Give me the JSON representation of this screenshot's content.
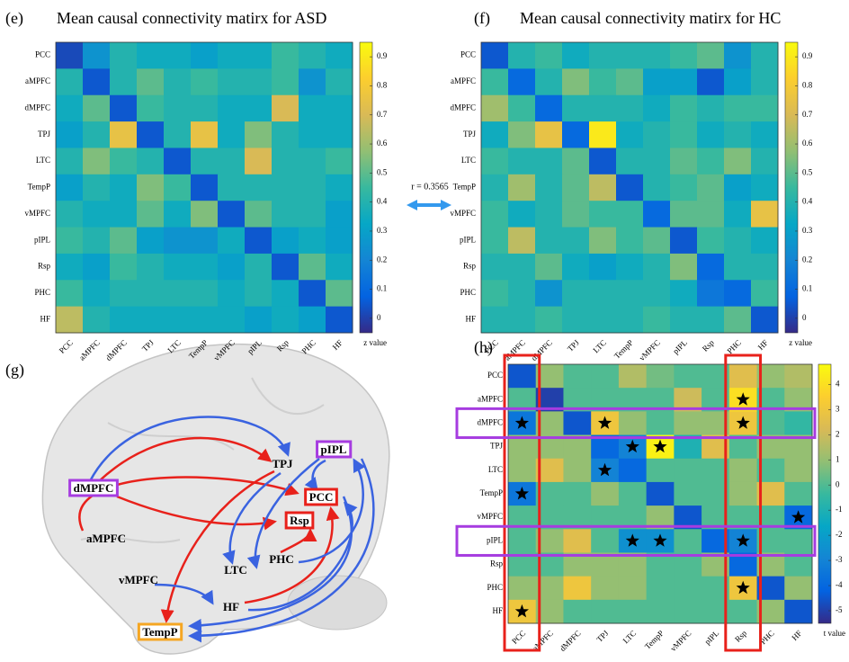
{
  "chart_data": [
    {
      "type": "heatmap",
      "panel": "(e)",
      "title": "Mean causal connectivity matirx for ASD",
      "colormap": "parula",
      "x_categories": [
        "PCC",
        "aMPFC",
        "dMPFC",
        "TPJ",
        "LTC",
        "TempP",
        "vMPFC",
        "pIPL",
        "Rsp",
        "PHC",
        "HF"
      ],
      "y_categories": [
        "PCC",
        "aMPFC",
        "dMPFC",
        "TPJ",
        "LTC",
        "TempP",
        "vMPFC",
        "pIPL",
        "Rsp",
        "PHC",
        "HF"
      ],
      "values": [
        [
          0.02,
          0.25,
          0.4,
          0.35,
          0.35,
          0.3,
          0.35,
          0.35,
          0.45,
          0.4,
          0.35
        ],
        [
          0.4,
          0.05,
          0.4,
          0.5,
          0.4,
          0.45,
          0.4,
          0.4,
          0.45,
          0.25,
          0.4
        ],
        [
          0.35,
          0.5,
          0.05,
          0.45,
          0.4,
          0.4,
          0.35,
          0.35,
          0.7,
          0.35,
          0.35
        ],
        [
          0.3,
          0.4,
          0.75,
          0.05,
          0.4,
          0.75,
          0.35,
          0.55,
          0.4,
          0.35,
          0.35
        ],
        [
          0.4,
          0.55,
          0.45,
          0.4,
          0.05,
          0.4,
          0.4,
          0.7,
          0.4,
          0.4,
          0.45
        ],
        [
          0.3,
          0.4,
          0.35,
          0.55,
          0.45,
          0.05,
          0.4,
          0.4,
          0.4,
          0.4,
          0.35
        ],
        [
          0.4,
          0.35,
          0.35,
          0.5,
          0.35,
          0.55,
          0.05,
          0.5,
          0.4,
          0.4,
          0.3
        ],
        [
          0.45,
          0.4,
          0.5,
          0.3,
          0.25,
          0.25,
          0.35,
          0.05,
          0.3,
          0.35,
          0.3
        ],
        [
          0.35,
          0.3,
          0.45,
          0.4,
          0.35,
          0.35,
          0.3,
          0.4,
          0.05,
          0.5,
          0.35
        ],
        [
          0.45,
          0.35,
          0.4,
          0.4,
          0.4,
          0.4,
          0.35,
          0.4,
          0.35,
          0.05,
          0.5
        ],
        [
          0.65,
          0.4,
          0.35,
          0.35,
          0.35,
          0.35,
          0.35,
          0.3,
          0.35,
          0.3,
          0.05
        ]
      ],
      "zlim": [
        -0.05,
        0.95
      ],
      "zticks": [
        0,
        0.1,
        0.2,
        0.3,
        0.4,
        0.5,
        0.6,
        0.7,
        0.8,
        0.9
      ],
      "colorbar_label": "z value"
    },
    {
      "type": "heatmap",
      "panel": "(f)",
      "title": "Mean causal connectivity matirx for HC",
      "colormap": "parula",
      "x_categories": [
        "PCC",
        "aMPFC",
        "dMPFC",
        "TPJ",
        "LTC",
        "TempP",
        "vMPFC",
        "pIPL",
        "Rsp",
        "PHC",
        "HF"
      ],
      "y_categories": [
        "PCC",
        "aMPFC",
        "dMPFC",
        "TPJ",
        "LTC",
        "TempP",
        "vMPFC",
        "pIPL",
        "Rsp",
        "PHC",
        "HF"
      ],
      "values": [
        [
          0.05,
          0.4,
          0.45,
          0.35,
          0.4,
          0.4,
          0.4,
          0.45,
          0.5,
          0.25,
          0.4
        ],
        [
          0.45,
          0.1,
          0.4,
          0.55,
          0.45,
          0.5,
          0.3,
          0.3,
          0.05,
          0.3,
          0.4
        ],
        [
          0.6,
          0.45,
          0.1,
          0.4,
          0.4,
          0.4,
          0.35,
          0.45,
          0.4,
          0.45,
          0.45
        ],
        [
          0.35,
          0.55,
          0.75,
          0.1,
          0.9,
          0.35,
          0.4,
          0.45,
          0.35,
          0.4,
          0.35
        ],
        [
          0.45,
          0.4,
          0.4,
          0.5,
          0.05,
          0.4,
          0.4,
          0.5,
          0.45,
          0.55,
          0.4
        ],
        [
          0.4,
          0.6,
          0.4,
          0.5,
          0.65,
          0.05,
          0.4,
          0.45,
          0.5,
          0.3,
          0.35
        ],
        [
          0.45,
          0.35,
          0.4,
          0.5,
          0.45,
          0.45,
          0.1,
          0.5,
          0.5,
          0.35,
          0.75
        ],
        [
          0.45,
          0.65,
          0.4,
          0.4,
          0.55,
          0.45,
          0.5,
          0.05,
          0.45,
          0.4,
          0.35
        ],
        [
          0.4,
          0.4,
          0.5,
          0.35,
          0.3,
          0.35,
          0.4,
          0.55,
          0.1,
          0.4,
          0.4
        ],
        [
          0.45,
          0.4,
          0.25,
          0.4,
          0.4,
          0.4,
          0.4,
          0.35,
          0.15,
          0.1,
          0.45
        ],
        [
          0.4,
          0.4,
          0.45,
          0.4,
          0.4,
          0.4,
          0.45,
          0.4,
          0.4,
          0.5,
          0.05
        ]
      ],
      "zlim": [
        -0.05,
        0.95
      ],
      "zticks": [
        0,
        0.1,
        0.2,
        0.3,
        0.4,
        0.5,
        0.6,
        0.7,
        0.8,
        0.9
      ],
      "colorbar_label": "z value"
    },
    {
      "type": "heatmap",
      "panel": "(h)",
      "colormap": "parula",
      "x_categories": [
        "PCC",
        "aMPFC",
        "dMPFC",
        "TPJ",
        "LTC",
        "TempP",
        "vMPFC",
        "pIPL",
        "Rsp",
        "PHC",
        "HF"
      ],
      "y_categories": [
        "PCC",
        "aMPFC",
        "dMPFC",
        "TPJ",
        "LTC",
        "TempP",
        "vMPFC",
        "pIPL",
        "Rsp",
        "PHC",
        "HF"
      ],
      "values": [
        [
          -4.5,
          1,
          0,
          0,
          1.5,
          0.5,
          0,
          0,
          2.5,
          1,
          1.5
        ],
        [
          0,
          -5,
          0,
          0,
          0,
          0,
          2,
          0,
          4,
          0,
          1
        ],
        [
          -3.5,
          1,
          -4.5,
          3,
          1,
          0,
          1,
          1,
          3,
          0,
          -0.5
        ],
        [
          1,
          1,
          1,
          -4,
          -3,
          4.5,
          -1,
          2.5,
          0,
          1,
          1
        ],
        [
          1,
          2.5,
          1,
          -3,
          -4,
          0,
          0,
          0,
          1,
          0,
          1
        ],
        [
          -3.5,
          0,
          0,
          1,
          0,
          -4.5,
          0,
          0,
          1,
          2.5,
          0
        ],
        [
          0,
          0,
          0,
          0,
          0,
          1,
          -4.5,
          0,
          0,
          0,
          -4
        ],
        [
          0,
          1,
          2.5,
          0,
          -2.5,
          -2.5,
          0,
          -4,
          -3,
          0,
          0
        ],
        [
          0,
          0,
          1,
          1,
          1,
          0,
          0,
          1,
          -4,
          1,
          0
        ],
        [
          1,
          1,
          3,
          1,
          1,
          0,
          0,
          0,
          3,
          -4.5,
          1
        ],
        [
          3,
          1,
          0,
          0,
          0,
          0,
          0,
          0,
          0,
          1,
          -4.5
        ]
      ],
      "zlim": [
        -5.5,
        4.8
      ],
      "zticks": [
        -5,
        -4,
        -3,
        -2,
        -1,
        0,
        1,
        2,
        3,
        4
      ],
      "colorbar_label": "t value",
      "stars": [
        [
          1,
          8
        ],
        [
          2,
          0
        ],
        [
          2,
          3
        ],
        [
          2,
          8
        ],
        [
          3,
          4
        ],
        [
          3,
          5
        ],
        [
          4,
          3
        ],
        [
          5,
          0
        ],
        [
          6,
          10
        ],
        [
          7,
          4
        ],
        [
          7,
          5
        ],
        [
          7,
          8
        ],
        [
          9,
          8
        ],
        [
          10,
          0
        ]
      ],
      "highlights": [
        {
          "axis": "column",
          "index": 0,
          "color": "#e8211b"
        },
        {
          "axis": "column",
          "index": 8,
          "color": "#e8211b"
        },
        {
          "axis": "row",
          "index": 2,
          "color": "#a63ce0"
        },
        {
          "axis": "row",
          "index": 7,
          "color": "#a63ce0"
        }
      ]
    }
  ],
  "annotation": "r = 0.3565",
  "diagram": {
    "panel": "(g)",
    "nodes": [
      {
        "label": "dMPFC",
        "box": "#a63ce0"
      },
      {
        "label": "aMPFC"
      },
      {
        "label": "TPJ"
      },
      {
        "label": "pIPL",
        "box": "#a63ce0"
      },
      {
        "label": "PCC",
        "box": "#e8211b"
      },
      {
        "label": "Rsp",
        "box": "#e8211b"
      },
      {
        "label": "PHC"
      },
      {
        "label": "LTC"
      },
      {
        "label": "vMPFC"
      },
      {
        "label": "HF"
      },
      {
        "label": "TempP",
        "box": "#f5a623"
      }
    ]
  }
}
